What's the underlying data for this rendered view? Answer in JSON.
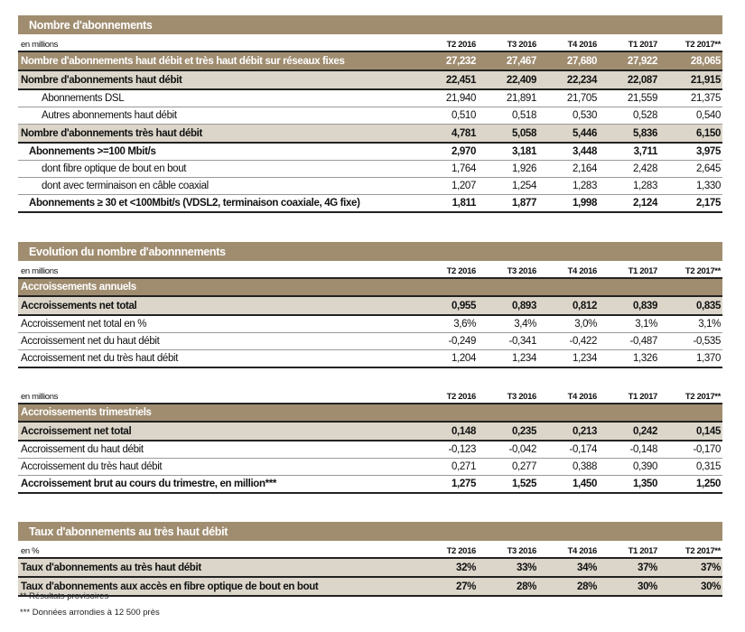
{
  "columns": [
    "T2 2016",
    "T3 2016",
    "T4 2016",
    "T1 2017",
    "T2 2017**"
  ],
  "sections": [
    {
      "title": "Nombre d'abonnements",
      "unit": "en millions",
      "rows": [
        {
          "label": "Nombre d'abonnements haut débit et très haut débit sur réseaux fixes",
          "style": "band-dark",
          "values": [
            "27,232",
            "27,467",
            "27,680",
            "27,922",
            "28,065"
          ]
        },
        {
          "label": "Nombre d'abonnements haut débit",
          "style": "band-light",
          "values": [
            "22,451",
            "22,409",
            "22,234",
            "22,087",
            "21,915"
          ]
        },
        {
          "label": "Abonnements DSL",
          "style": "i2",
          "values": [
            "21,940",
            "21,891",
            "21,705",
            "21,559",
            "21,375"
          ]
        },
        {
          "label": "Autres abonnements haut débit",
          "style": "i2",
          "values": [
            "0,510",
            "0,518",
            "0,530",
            "0,528",
            "0,540"
          ]
        },
        {
          "label": "Nombre d'abonnements très haut débit",
          "style": "band-light",
          "values": [
            "4,781",
            "5,058",
            "5,446",
            "5,836",
            "6,150"
          ]
        },
        {
          "label": "Abonnements >=100 Mbit/s",
          "style": "bold i1",
          "values": [
            "2,970",
            "3,181",
            "3,448",
            "3,711",
            "3,975"
          ]
        },
        {
          "label": "dont  fibre optique de bout en bout",
          "style": "i2",
          "values": [
            "1,764",
            "1,926",
            "2,164",
            "2,428",
            "2,645"
          ]
        },
        {
          "label": "dont avec terminaison en câble coaxial",
          "style": "i2",
          "values": [
            "1,207",
            "1,254",
            "1,283",
            "1,283",
            "1,330"
          ]
        },
        {
          "label": "Abonnements ≥ 30 et <100Mbit/s (VDSL2, terminaison coaxiale, 4G fixe)",
          "style": "bold i1 lastthick",
          "values": [
            "1,811",
            "1,877",
            "1,998",
            "2,124",
            "2,175"
          ]
        }
      ]
    },
    {
      "title": "Evolution du nombre d'abonnnements",
      "unit": "en millions",
      "subtitle": "Accroissements annuels",
      "rows": [
        {
          "label": "Accroissements net total",
          "style": "band-light",
          "values": [
            "0,955",
            "0,893",
            "0,812",
            "0,839",
            "0,835"
          ]
        },
        {
          "label": "Accroissement net  total en %",
          "style": "",
          "values": [
            "3,6%",
            "3,4%",
            "3,0%",
            "3,1%",
            "3,1%"
          ]
        },
        {
          "label": "Accroissement net du haut débit",
          "style": "",
          "values": [
            "-0,249",
            "-0,341",
            "-0,422",
            "-0,487",
            "-0,535"
          ]
        },
        {
          "label": "Accroissement net du très haut débit",
          "style": "lastthick",
          "values": [
            "1,204",
            "1,234",
            "1,234",
            "1,326",
            "1,370"
          ]
        }
      ]
    },
    {
      "unit": "en millions",
      "subtitle": "Accroissements trimestriels",
      "rows": [
        {
          "label": "Accroissement net total",
          "style": "band-light",
          "values": [
            "0,148",
            "0,235",
            "0,213",
            "0,242",
            "0,145"
          ]
        },
        {
          "label": "Accroissement du haut débit",
          "style": "",
          "values": [
            "-0,123",
            "-0,042",
            "-0,174",
            "-0,148",
            "-0,170"
          ]
        },
        {
          "label": "Accroissement du très haut débit",
          "style": "",
          "values": [
            "0,271",
            "0,277",
            "0,388",
            "0,390",
            "0,315"
          ]
        },
        {
          "label": "Accroissement brut au cours du trimestre, en million***",
          "style": "bold lastthick",
          "values": [
            "1,275",
            "1,525",
            "1,450",
            "1,350",
            "1,250"
          ]
        }
      ]
    },
    {
      "title": "Taux d'abonnements au très haut débit",
      "unit": "en %",
      "rows": [
        {
          "label": "Taux d'abonnements au très haut débit",
          "style": "band-light",
          "values": [
            "32%",
            "33%",
            "34%",
            "37%",
            "37%"
          ]
        },
        {
          "label": "Taux d'abonnements aux accès en fibre optique de bout en bout",
          "style": "band-light",
          "values": [
            "27%",
            "28%",
            "28%",
            "30%",
            "30%"
          ]
        }
      ]
    }
  ],
  "footnotes": [
    "** Résultats provisoires",
    "*** Données arrondies à 12 500 près"
  ],
  "colors": {
    "band_dark": "#a08d70",
    "band_light": "#dcd6ca"
  }
}
